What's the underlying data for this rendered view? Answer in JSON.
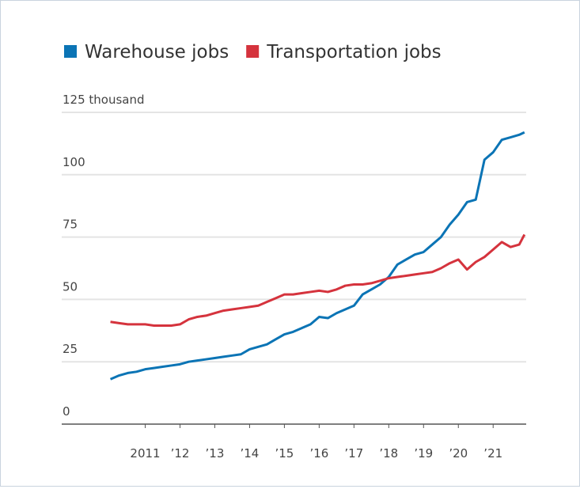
{
  "chart_data": {
    "type": "line",
    "x": [
      2010,
      2010.25,
      2010.5,
      2010.75,
      2011,
      2011.25,
      2011.5,
      2011.75,
      2012,
      2012.25,
      2012.5,
      2012.75,
      2013,
      2013.25,
      2013.5,
      2013.75,
      2014,
      2014.25,
      2014.5,
      2014.75,
      2015,
      2015.25,
      2015.5,
      2015.75,
      2016,
      2016.25,
      2016.5,
      2016.75,
      2017,
      2017.25,
      2017.5,
      2017.75,
      2018,
      2018.25,
      2018.5,
      2018.75,
      2019,
      2019.25,
      2019.5,
      2019.75,
      2020,
      2020.25,
      2020.5,
      2020.75,
      2021,
      2021.25,
      2021.5,
      2021.75,
      2021.9
    ],
    "series": [
      {
        "name": "Warehouse jobs",
        "color": "#0b74b5",
        "values": [
          18,
          19.5,
          20.5,
          21,
          22,
          22.5,
          23,
          23.5,
          24,
          25,
          25.5,
          26,
          26.5,
          27,
          27.5,
          28,
          30,
          31,
          32,
          34,
          36,
          37,
          38.5,
          40,
          43,
          42.5,
          44.5,
          46,
          47.5,
          52,
          54,
          56,
          59,
          64,
          66,
          68,
          69,
          72,
          75,
          80,
          84,
          89,
          90,
          106,
          109,
          114,
          115,
          116,
          117
        ]
      },
      {
        "name": "Transportation jobs",
        "color": "#d5333d",
        "values": [
          41,
          40.5,
          40,
          40,
          40,
          39.5,
          39.5,
          39.5,
          40,
          42,
          43,
          43.5,
          44.5,
          45.5,
          46,
          46.5,
          47,
          47.5,
          49,
          50.5,
          52,
          52,
          52.5,
          53,
          53.5,
          53,
          54,
          55.5,
          56,
          56,
          56.5,
          57.5,
          58.5,
          59,
          59.5,
          60,
          60.5,
          61,
          62.5,
          64.5,
          66,
          62,
          65,
          67,
          70,
          73,
          71,
          72,
          76
        ]
      }
    ],
    "xlim": [
      2008.6,
      2021.95
    ],
    "xticks": [
      2011,
      {
        "value": 2012,
        "label": "’12"
      },
      {
        "value": 2013,
        "label": "’13"
      },
      {
        "value": 2014,
        "label": "’14"
      },
      {
        "value": 2015,
        "label": "’15"
      },
      {
        "value": 2016,
        "label": "’16"
      },
      {
        "value": 2017,
        "label": "’17"
      },
      {
        "value": 2018,
        "label": "’18"
      },
      {
        "value": 2019,
        "label": "’19"
      },
      {
        "value": 2020,
        "label": "’20"
      },
      {
        "value": 2021,
        "label": "’21"
      }
    ],
    "ylim": [
      0,
      125
    ],
    "yticks": [
      0,
      25,
      50,
      75,
      100,
      {
        "value": 125,
        "label": "125 thousand"
      }
    ],
    "grid": true
  }
}
